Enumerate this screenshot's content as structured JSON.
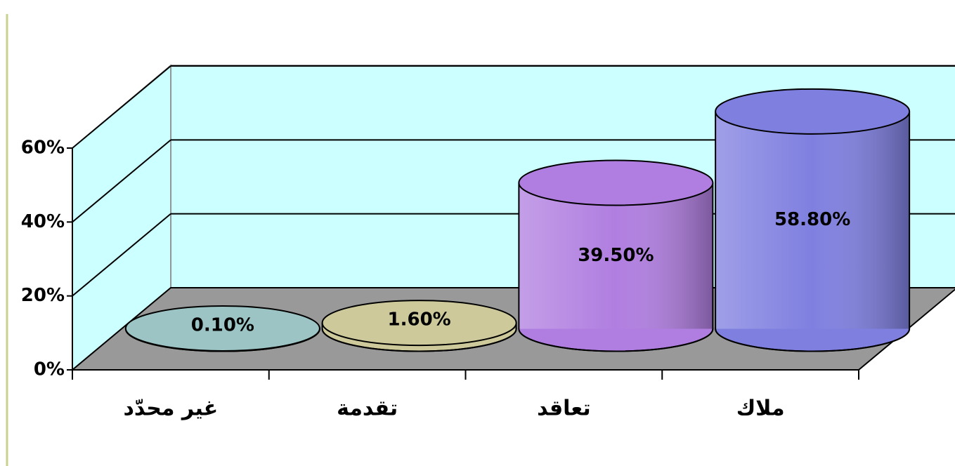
{
  "chart_data": {
    "type": "cylinder-bar",
    "categories": [
      "غير محدّد",
      "تقدمة",
      "تعاقد",
      "ملاك"
    ],
    "values": [
      0.1,
      1.6,
      39.5,
      58.8
    ],
    "value_labels": [
      "0.10%",
      "1.60%",
      "39.50%",
      "58.80%"
    ],
    "colors": [
      "#9cc4c4",
      "#cdc99a",
      "#b07ee0",
      "#7f7fe0"
    ],
    "ylim": [
      0,
      60
    ],
    "yticks": [
      {
        "value": 0,
        "label": "0%"
      },
      {
        "value": 20,
        "label": "20%"
      },
      {
        "value": 40,
        "label": "40%"
      },
      {
        "value": 60,
        "label": "60%"
      }
    ],
    "grid": true
  }
}
